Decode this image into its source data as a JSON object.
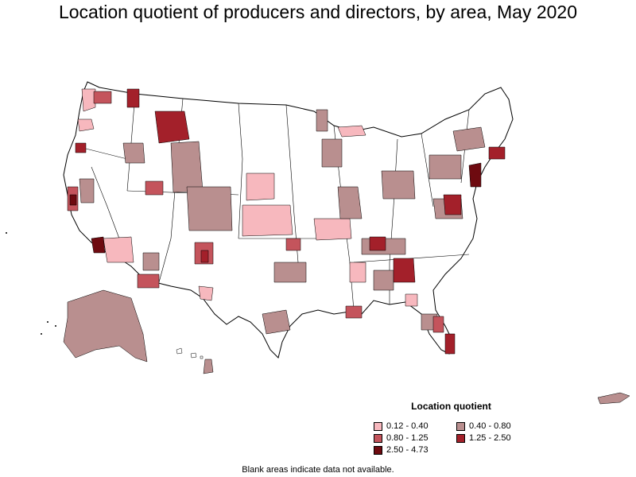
{
  "title": "Location quotient of producers and directors, by area, May 2020",
  "legend": {
    "title": "Location quotient",
    "items": [
      {
        "label": "0.12 - 0.40",
        "color": "#f7b8be"
      },
      {
        "label": "0.40 - 0.80",
        "color": "#b98f8f"
      },
      {
        "label": "0.80 - 1.25",
        "color": "#c4545c"
      },
      {
        "label": "1.25 - 2.50",
        "color": "#a3202a"
      },
      {
        "label": "2.50 - 4.73",
        "color": "#6e0a10"
      }
    ]
  },
  "footnote": "Blank areas indicate data not available.",
  "colors": {
    "land": "#ffffff",
    "border": "#000000"
  }
}
